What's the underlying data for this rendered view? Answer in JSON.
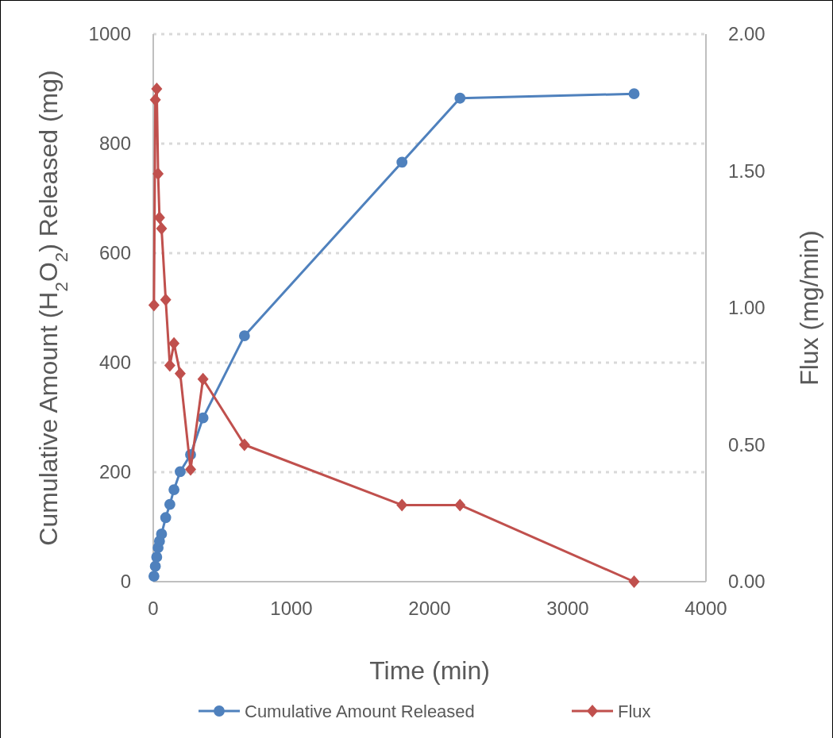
{
  "chart_data": {
    "type": "line",
    "xlabel": "Time (min)",
    "ylabel": "Cumulative Amount (H$_{2}$O$_{2}$) Released (mg)",
    "y2label": "Flux (mg/min)",
    "x": [
      5,
      15,
      25,
      35,
      45,
      60,
      90,
      120,
      150,
      195,
      270,
      360,
      660,
      1800,
      2220,
      3480
    ],
    "series": [
      {
        "name": "Cumulative Amount Released",
        "color": "#4f81bd",
        "marker": "circle",
        "values": [
          10,
          28,
          45,
          62,
          74,
          87,
          117,
          141,
          168,
          201,
          232,
          299,
          449,
          766,
          883,
          891
        ]
      },
      {
        "name": "Flux",
        "color": "#c0504d",
        "marker": "diamond",
        "axis": "y2",
        "values": [
          1.01,
          1.76,
          1.8,
          1.49,
          1.33,
          1.29,
          1.03,
          0.79,
          0.87,
          0.76,
          0.41,
          0.74,
          0.5,
          0.28,
          0.28,
          0.0
        ]
      }
    ],
    "xlim": [
      0,
      4000
    ],
    "xticks": [
      0,
      1000,
      2000,
      3000,
      4000
    ],
    "ylim": [
      0,
      1000
    ],
    "yticks": [
      0,
      200,
      400,
      600,
      800,
      1000
    ],
    "y2lim": [
      0,
      2
    ],
    "y2ticks": [
      {
        "value": 0,
        "label": "0.00"
      },
      {
        "value": 0.5,
        "label": "0.50"
      },
      {
        "value": 1,
        "label": "1.00"
      },
      {
        "value": 1.5,
        "label": "1.50"
      },
      {
        "value": 2,
        "label": "2.00"
      }
    ],
    "grid": "y",
    "legend": "bottom"
  }
}
